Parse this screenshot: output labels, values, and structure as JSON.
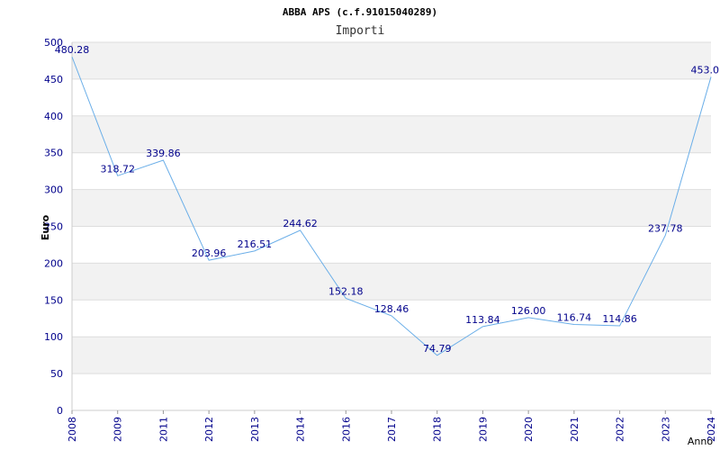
{
  "chart_data": {
    "type": "line",
    "title": "ABBA APS (c.f.91015040289)",
    "subtitle": "Importi",
    "xlabel": "Anno",
    "ylabel": "Euro",
    "x": [
      "2008",
      "2009",
      "2011",
      "2012",
      "2013",
      "2014",
      "2016",
      "2017",
      "2018",
      "2019",
      "2020",
      "2021",
      "2022",
      "2023",
      "2024"
    ],
    "values": [
      480.28,
      318.72,
      339.86,
      203.96,
      216.51,
      244.62,
      152.18,
      128.46,
      74.79,
      113.84,
      126.0,
      116.74,
      114.86,
      237.78,
      453.0
    ],
    "labels": [
      "480.28",
      "318.72",
      "339.86",
      "203.96",
      "216.51",
      "244.62",
      "152.18",
      "128.46",
      "74.79",
      "113.84",
      "126.00",
      "116.74",
      "114.86",
      "237.78",
      "453.0"
    ],
    "ylim": [
      0,
      500
    ],
    "yticks": [
      "0",
      "50",
      "100",
      "150",
      "200",
      "250",
      "300",
      "350",
      "400",
      "450",
      "500"
    ],
    "grid": true,
    "colors": {
      "line": "#6aaee8",
      "band": "#f2f2f2",
      "grid": "#dddddd",
      "text": "#00008b"
    }
  }
}
